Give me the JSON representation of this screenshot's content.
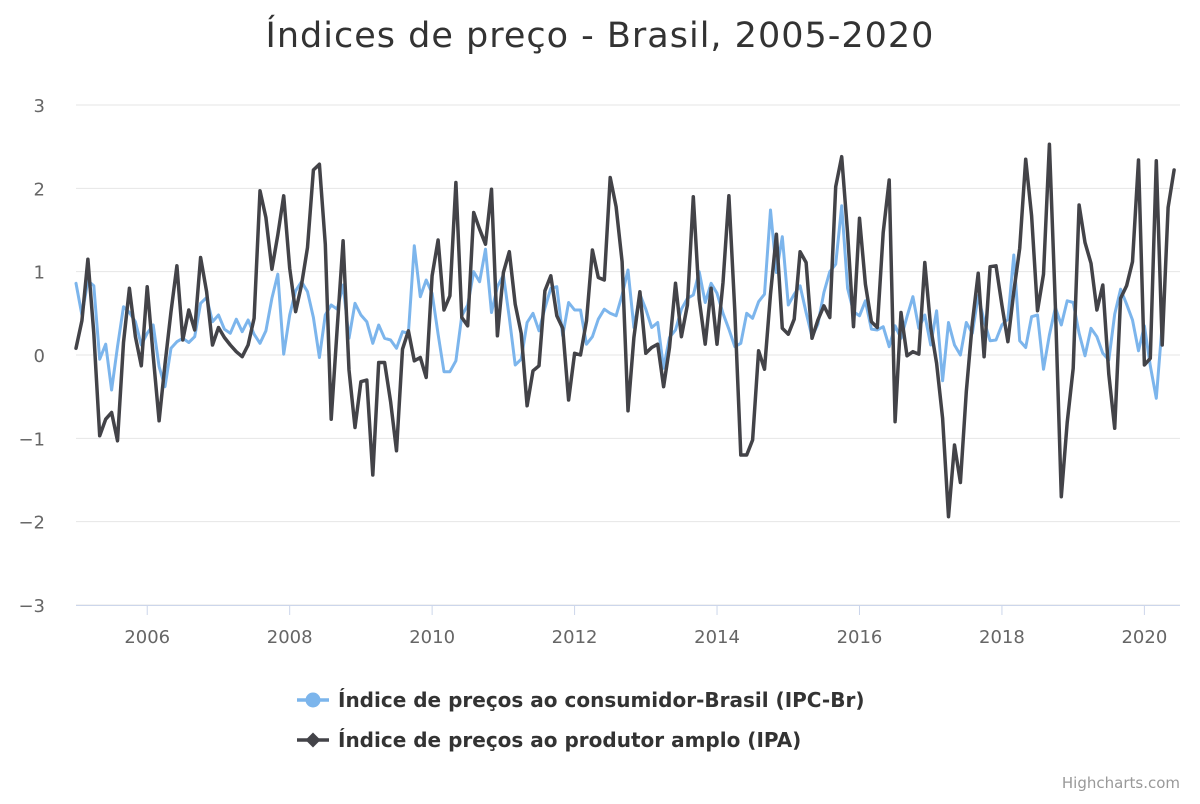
{
  "chart_data": {
    "type": "line",
    "title": "Índices de preço - Brasil, 2005-2020",
    "ylim": [
      -3,
      3
    ],
    "yticks": [
      -3,
      -2,
      -1,
      0,
      1,
      2,
      3
    ],
    "ytick_labels": [
      "−3",
      "−2",
      "−1",
      "0",
      "1",
      "2",
      "3"
    ],
    "xlim": [
      "2005-01",
      "2020-07"
    ],
    "xtick_labels": [
      "2006",
      "2008",
      "2010",
      "2012",
      "2014",
      "2016",
      "2018",
      "2020"
    ],
    "x_start": "2005-01",
    "x_step": "month",
    "grid": "horizontal",
    "legend_position": "bottom-center",
    "series": [
      {
        "name": "Índice de preços ao consumidor-Brasil (IPC-Br)",
        "color": "#7cb5ec",
        "marker": "circle",
        "values": [
          0.86,
          0.48,
          0.89,
          0.83,
          -0.05,
          0.13,
          -0.42,
          0.1,
          0.58,
          0.51,
          0.4,
          0.12,
          0.26,
          0.36,
          -0.14,
          -0.38,
          0.08,
          0.16,
          0.2,
          0.15,
          0.22,
          0.62,
          0.69,
          0.4,
          0.48,
          0.31,
          0.26,
          0.43,
          0.28,
          0.42,
          0.25,
          0.14,
          0.29,
          0.68,
          0.97,
          0.01,
          0.48,
          0.77,
          0.88,
          0.76,
          0.45,
          -0.03,
          0.48,
          0.6,
          0.55,
          0.84,
          0.2,
          0.62,
          0.48,
          0.4,
          0.14,
          0.36,
          0.2,
          0.18,
          0.08,
          0.28,
          0.26,
          1.31,
          0.7,
          0.9,
          0.74,
          0.25,
          -0.2,
          -0.2,
          -0.07,
          0.47,
          0.6,
          1.0,
          0.88,
          1.27,
          0.51,
          0.82,
          0.96,
          0.45,
          -0.12,
          -0.05,
          0.39,
          0.5,
          0.29,
          0.56,
          0.8,
          0.82,
          0.23,
          0.63,
          0.54,
          0.54,
          0.13,
          0.22,
          0.43,
          0.55,
          0.5,
          0.47,
          0.72,
          1.02,
          0.33,
          0.73,
          0.55,
          0.33,
          0.39,
          -0.16,
          0.21,
          0.3,
          0.55,
          0.68,
          0.72,
          1.0,
          0.63,
          0.86,
          0.74,
          0.5,
          0.31,
          0.1,
          0.14,
          0.5,
          0.44,
          0.64,
          0.73,
          1.74,
          0.99,
          1.42,
          0.6,
          0.73,
          0.83,
          0.51,
          0.22,
          0.37,
          0.75,
          1.0,
          1.09,
          1.79,
          0.8,
          0.52,
          0.47,
          0.65,
          0.31,
          0.3,
          0.34,
          0.1,
          0.35,
          0.2,
          0.46,
          0.7,
          0.32,
          0.48,
          0.12,
          0.53,
          -0.31,
          0.39,
          0.12,
          0.0,
          0.39,
          0.26,
          0.71,
          0.41,
          0.17,
          0.18,
          0.36,
          0.43,
          1.2,
          0.17,
          0.09,
          0.46,
          0.48,
          -0.17,
          0.24,
          0.57,
          0.36,
          0.65,
          0.63,
          0.26,
          -0.01,
          0.32,
          0.22,
          0.02,
          -0.06,
          0.49,
          0.79,
          0.61,
          0.42,
          0.05,
          0.35,
          -0.13,
          -0.52,
          0.37
        ]
      },
      {
        "name": "Índice de preços ao produtor amplo (IPA)",
        "color": "#434348",
        "marker": "diamond",
        "values": [
          0.08,
          0.41,
          1.15,
          0.26,
          -0.97,
          -0.77,
          -0.69,
          -1.03,
          0.15,
          0.8,
          0.22,
          -0.13,
          0.82,
          -0.01,
          -0.79,
          -0.11,
          0.52,
          1.07,
          0.18,
          0.54,
          0.3,
          1.17,
          0.76,
          0.12,
          0.33,
          0.21,
          0.12,
          0.04,
          -0.02,
          0.12,
          0.44,
          1.97,
          1.65,
          1.03,
          1.44,
          1.91,
          1.04,
          0.52,
          0.84,
          1.29,
          2.22,
          2.29,
          1.33,
          -0.77,
          0.32,
          1.37,
          -0.18,
          -0.87,
          -0.32,
          -0.3,
          -1.44,
          -0.09,
          -0.09,
          -0.56,
          -1.15,
          0.07,
          0.29,
          -0.07,
          -0.03,
          -0.27,
          0.95,
          1.38,
          0.54,
          0.71,
          2.07,
          0.45,
          0.35,
          1.71,
          1.51,
          1.33,
          1.99,
          0.23,
          0.99,
          1.24,
          0.61,
          0.26,
          -0.61,
          -0.19,
          -0.13,
          0.77,
          0.95,
          0.47,
          0.32,
          -0.54,
          0.02,
          0.0,
          0.41,
          1.26,
          0.93,
          0.9,
          2.13,
          1.78,
          1.12,
          -0.67,
          0.21,
          0.76,
          0.02,
          0.09,
          0.13,
          -0.38,
          0.09,
          0.86,
          0.22,
          0.6,
          1.9,
          0.67,
          0.13,
          0.8,
          0.13,
          0.87,
          1.91,
          0.53,
          -1.2,
          -1.2,
          -1.02,
          0.05,
          -0.17,
          0.73,
          1.45,
          0.32,
          0.25,
          0.43,
          1.24,
          1.11,
          0.2,
          0.42,
          0.59,
          0.45,
          2.02,
          2.38,
          1.46,
          0.34,
          1.64,
          0.85,
          0.4,
          0.33,
          1.47,
          2.1,
          -0.8,
          0.51,
          -0.01,
          0.04,
          0.01,
          1.11,
          0.33,
          -0.1,
          -0.76,
          -1.94,
          -1.08,
          -1.53,
          -0.44,
          0.38,
          0.98,
          -0.02,
          1.06,
          1.07,
          0.6,
          0.16,
          0.76,
          1.28,
          2.35,
          1.67,
          0.53,
          0.97,
          2.53,
          0.58,
          -1.7,
          -0.81,
          -0.16,
          1.8,
          1.35,
          1.1,
          0.54,
          0.84,
          -0.23,
          -0.88,
          0.68,
          0.83,
          1.12,
          2.34,
          -0.12,
          -0.04,
          2.33,
          0.12,
          1.77,
          2.22
        ]
      }
    ]
  },
  "credits": "Highcharts.com"
}
